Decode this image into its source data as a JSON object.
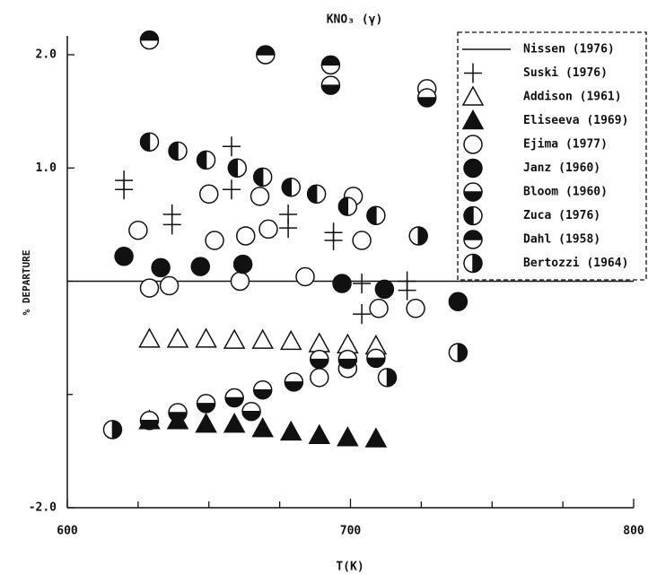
{
  "chart_data": {
    "type": "scatter",
    "title": "KNO₃ (γ)",
    "xlabel": "T(K)",
    "ylabel": "% DEPARTURE",
    "xlim": [
      600,
      800
    ],
    "xticks": [
      600,
      700,
      800
    ],
    "xminor": [
      625,
      650,
      675,
      725,
      750,
      775
    ],
    "ylim": [
      -2,
      2
    ],
    "yticks": [
      {
        "value": 2,
        "label": "2.0"
      },
      {
        "value": 1,
        "label": "1.0"
      },
      {
        "value": -2,
        "label": "-2.0"
      }
    ],
    "yminor": [
      0,
      -1
    ],
    "legend": "upper right",
    "color": "#111111",
    "series": [
      {
        "name": "Nissen (1976)",
        "marker": "line",
        "x": [
          600,
          800
        ],
        "values": [
          0,
          0
        ]
      },
      {
        "name": "Suski (1976)",
        "marker": "plus",
        "x": [
          620,
          620,
          637,
          637,
          658,
          658,
          678,
          678,
          694,
          694,
          704,
          704,
          720,
          720
        ],
        "values": [
          0.89,
          0.81,
          0.59,
          0.5,
          1.19,
          0.81,
          0.59,
          0.47,
          0.43,
          0.36,
          -0.02,
          -0.29,
          0,
          -0.08
        ]
      },
      {
        "name": "Addison (1961)",
        "marker": "triangle-open",
        "x": [
          629,
          639,
          649,
          659,
          669,
          679,
          689,
          699,
          709
        ],
        "values": [
          -0.51,
          -0.51,
          -0.51,
          -0.52,
          -0.52,
          -0.53,
          -0.55,
          -0.56,
          -0.57
        ]
      },
      {
        "name": "Eliseeva (1969)",
        "marker": "triangle-filled",
        "x": [
          629,
          639,
          649,
          659,
          669,
          679,
          689,
          699,
          709
        ],
        "values": [
          -1.23,
          -1.23,
          -1.26,
          -1.26,
          -1.3,
          -1.33,
          -1.36,
          -1.38,
          -1.39
        ]
      },
      {
        "name": "Ejima (1977)",
        "marker": "circle-open",
        "x": [
          625,
          629,
          636,
          650,
          652,
          661,
          663,
          668,
          671,
          684,
          689,
          699,
          701,
          704,
          710,
          723,
          727
        ],
        "values": [
          0.45,
          -0.06,
          -0.04,
          0.77,
          0.36,
          0,
          0.4,
          0.75,
          0.46,
          0.04,
          -0.85,
          -0.77,
          0.75,
          0.36,
          -0.24,
          -0.24,
          1.7
        ]
      },
      {
        "name": "Janz (1960)",
        "marker": "circle-filled",
        "x": [
          620,
          633,
          647,
          662,
          697,
          712,
          738
        ],
        "values": [
          0.22,
          0.12,
          0.13,
          0.15,
          -0.02,
          -0.07,
          -0.18
        ]
      },
      {
        "name": "Bloom (1960)",
        "marker": "half-bottom",
        "x": [
          693,
          727,
          629,
          639,
          649,
          659,
          665,
          669,
          680,
          689,
          699,
          709
        ],
        "values": [
          1.73,
          1.62,
          -1.23,
          -1.16,
          -1.08,
          -1.03,
          -1.15,
          -0.96,
          -0.89,
          -0.69,
          -0.69,
          -0.68
        ]
      },
      {
        "name": "Zuca (1976)",
        "marker": "half-left",
        "x": [
          629,
          639,
          649,
          660,
          669,
          679,
          688,
          699,
          709
        ],
        "values": [
          1.23,
          1.15,
          1.07,
          1.0,
          0.92,
          0.83,
          0.77,
          0.66,
          0.58
        ]
      },
      {
        "name": "Dahl (1958)",
        "marker": "half-top",
        "x": [
          629,
          670,
          693
        ],
        "values": [
          2.13,
          2.0,
          1.91
        ]
      },
      {
        "name": "Bertozzi (1964)",
        "marker": "half-right",
        "x": [
          616,
          713,
          724,
          738
        ],
        "values": [
          -1.31,
          -0.85,
          0.4,
          -0.63
        ]
      }
    ]
  }
}
